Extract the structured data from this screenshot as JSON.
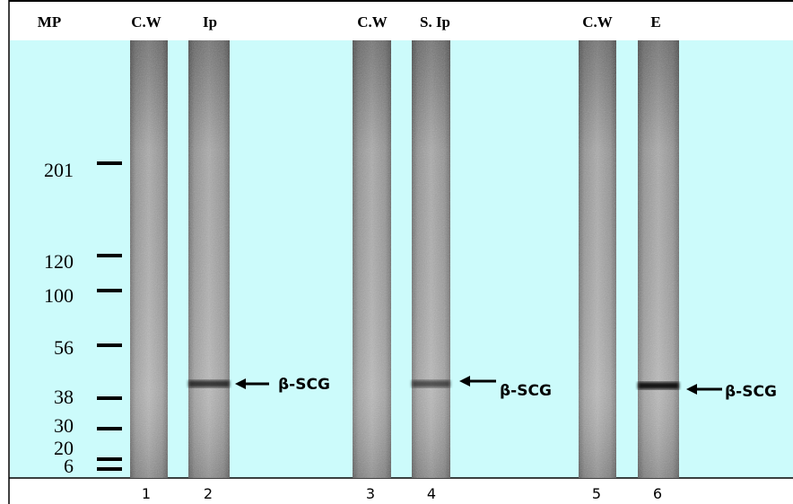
{
  "header": {
    "labels": [
      "MP",
      "C.W",
      "Ip",
      "C.W",
      "S. Ip",
      "C.W",
      "E"
    ]
  },
  "markers": [
    201,
    120,
    100,
    56,
    38,
    30,
    20,
    6
  ],
  "lane_numbers": [
    1,
    2,
    3,
    4,
    5,
    6
  ],
  "annotations": [
    "β-SCG",
    "β-SCG",
    "β-SCG"
  ]
}
